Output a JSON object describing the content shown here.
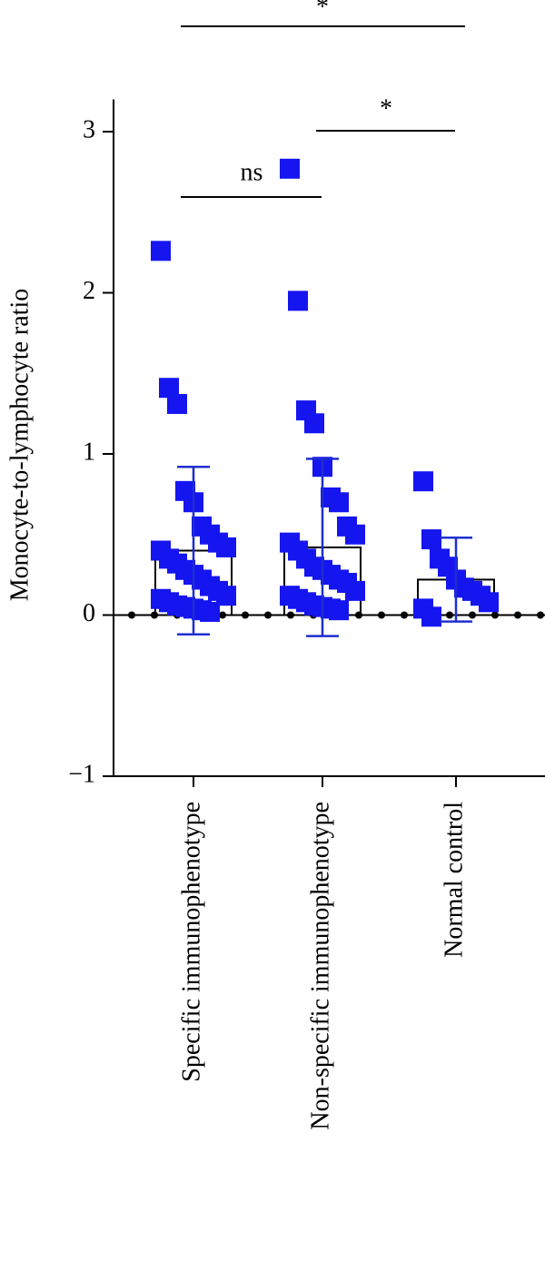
{
  "chart_data": {
    "type": "bar",
    "ylabel": "Monocyte-to-lymphocyte ratio",
    "categories": [
      "Specific immunophenotype",
      "Non-specific immunophenotype",
      "Normal control"
    ],
    "values": [
      0.4,
      0.42,
      0.22
    ],
    "errors": [
      0.52,
      0.55,
      0.26
    ],
    "points": [
      [
        2.26,
        1.41,
        1.31,
        0.77,
        0.7,
        0.55,
        0.5,
        0.45,
        0.42,
        0.4,
        0.35,
        0.32,
        0.28,
        0.25,
        0.22,
        0.18,
        0.15,
        0.12,
        0.1,
        0.08,
        0.06,
        0.05,
        0.04,
        0.03,
        0.02
      ],
      [
        2.77,
        1.95,
        1.27,
        1.19,
        0.92,
        0.73,
        0.7,
        0.55,
        0.5,
        0.45,
        0.4,
        0.35,
        0.3,
        0.28,
        0.25,
        0.22,
        0.2,
        0.15,
        0.12,
        0.1,
        0.08,
        0.06,
        0.05,
        0.04,
        0.03
      ],
      [
        0.83,
        0.47,
        0.35,
        0.3,
        0.22,
        0.17,
        0.15,
        0.12,
        0.08,
        0.04,
        -0.01
      ]
    ],
    "point_color": "#1515f0",
    "errorbar_color": "#1f2fd0",
    "annotations": [
      "*",
      "ns",
      "*"
    ],
    "ylim": [
      -1,
      3.2
    ],
    "yticks": [
      {
        "value": -1,
        "label": "−1"
      },
      0,
      1,
      2,
      3
    ]
  }
}
